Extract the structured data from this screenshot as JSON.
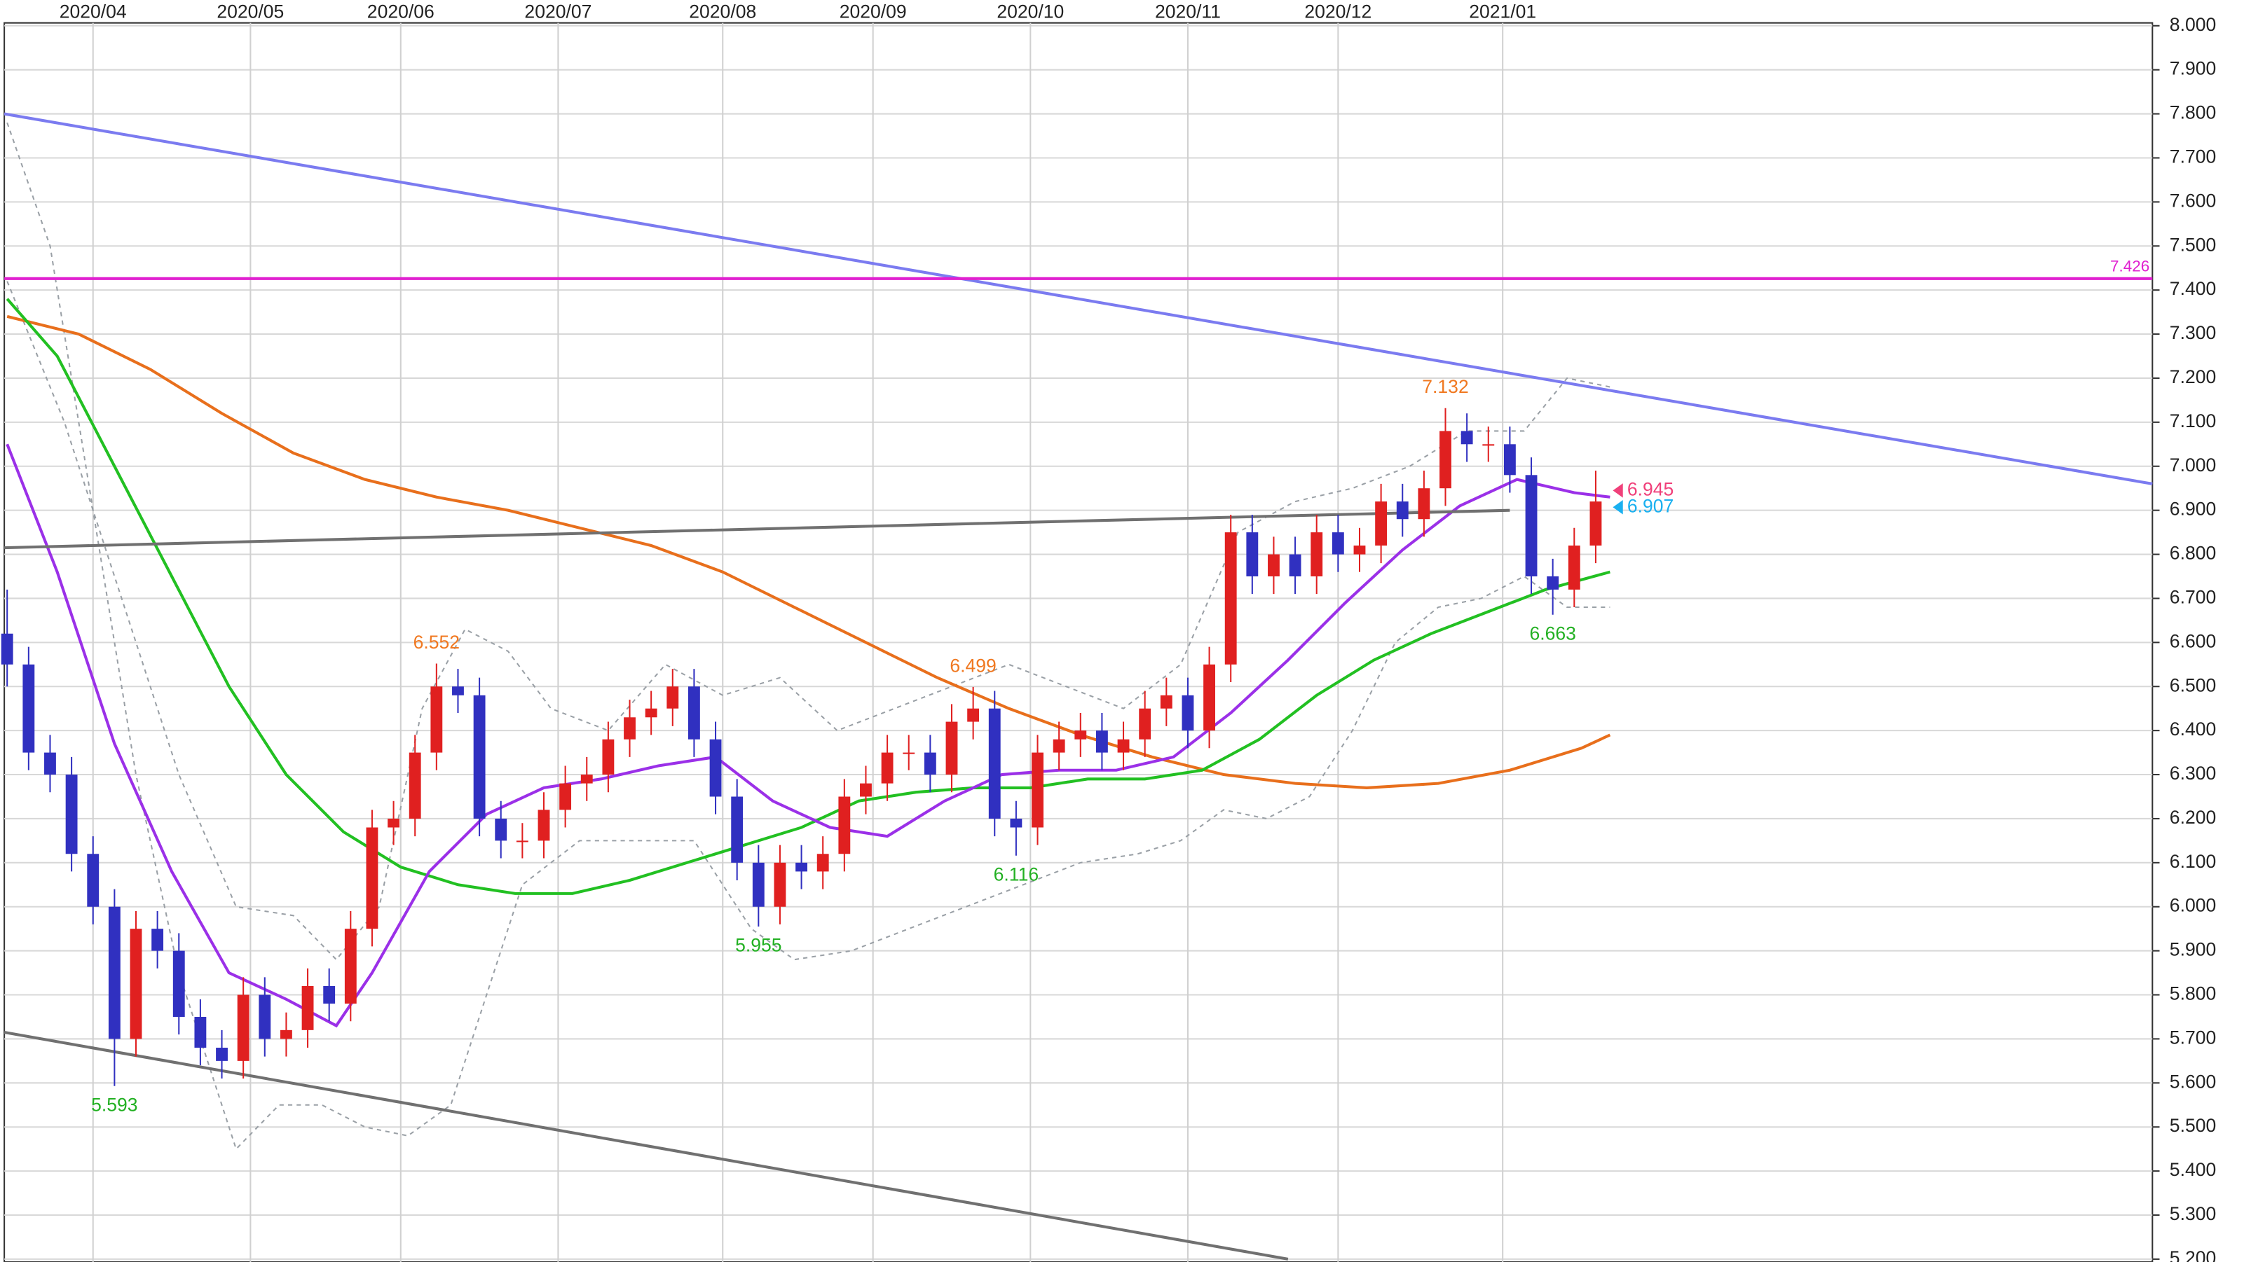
{
  "chart_data": {
    "type": "candlestick",
    "xlim": [
      -0.4,
      299.8
    ],
    "xticks": [
      {
        "value": 12,
        "label": "2020/04"
      },
      {
        "value": 34,
        "label": "2020/05"
      },
      {
        "value": 55,
        "label": "2020/06"
      },
      {
        "value": 77,
        "label": "2020/07"
      },
      {
        "value": 100,
        "label": "2020/08"
      },
      {
        "value": 121,
        "label": "2020/09"
      },
      {
        "value": 143,
        "label": "2020/10"
      },
      {
        "value": 165,
        "label": "2020/11"
      },
      {
        "value": 186,
        "label": "2020/12"
      },
      {
        "value": 209,
        "label": "2021/01"
      }
    ],
    "ylim": [
      5.2,
      8.0
    ],
    "yticks": [
      {
        "value": 5.2,
        "label": "5.200"
      },
      {
        "value": 5.3,
        "label": "5.300"
      },
      {
        "value": 5.4,
        "label": "5.400"
      },
      {
        "value": 5.5,
        "label": "5.500"
      },
      {
        "value": 5.6,
        "label": "5.600"
      },
      {
        "value": 5.7,
        "label": "5.700"
      },
      {
        "value": 5.8,
        "label": "5.800"
      },
      {
        "value": 5.9,
        "label": "5.900"
      },
      {
        "value": 6.0,
        "label": "6.000"
      },
      {
        "value": 6.1,
        "label": "6.100"
      },
      {
        "value": 6.2,
        "label": "6.200"
      },
      {
        "value": 6.3,
        "label": "6.300"
      },
      {
        "value": 6.4,
        "label": "6.400"
      },
      {
        "value": 6.5,
        "label": "6.500"
      },
      {
        "value": 6.6,
        "label": "6.600"
      },
      {
        "value": 6.7,
        "label": "6.700"
      },
      {
        "value": 6.8,
        "label": "6.800"
      },
      {
        "value": 6.9,
        "label": "6.900"
      },
      {
        "value": 7.0,
        "label": "7.000"
      },
      {
        "value": 7.1,
        "label": "7.100"
      },
      {
        "value": 7.2,
        "label": "7.200"
      },
      {
        "value": 7.3,
        "label": "7.300"
      },
      {
        "value": 7.4,
        "label": "7.400"
      },
      {
        "value": 7.5,
        "label": "7.500"
      },
      {
        "value": 7.6,
        "label": "7.600"
      },
      {
        "value": 7.7,
        "label": "7.700"
      },
      {
        "value": 7.8,
        "label": "7.800"
      },
      {
        "value": 7.9,
        "label": "7.900"
      },
      {
        "value": 8.0,
        "label": "8.000"
      }
    ],
    "grid": true,
    "up_color": "#e02020",
    "down_color": "#3030c0",
    "candles": {
      "x": [
        0,
        3,
        6,
        9,
        12,
        15,
        18,
        21,
        24,
        27,
        30,
        33,
        36,
        39,
        42,
        45,
        48,
        51,
        54,
        57,
        60,
        63,
        66,
        69,
        72,
        75,
        78,
        81,
        84,
        87,
        90,
        93,
        96,
        99,
        102,
        105,
        108,
        111,
        114,
        117,
        120,
        123,
        126,
        129,
        132,
        135,
        138,
        141,
        144,
        147,
        150,
        153,
        156,
        159,
        162,
        165,
        168,
        171,
        174,
        177,
        180,
        183,
        186,
        189,
        192,
        195,
        198,
        201,
        204,
        207,
        210,
        213,
        216,
        219,
        222
      ],
      "open": [
        6.62,
        6.55,
        6.35,
        6.3,
        6.12,
        6.0,
        5.7,
        5.95,
        5.9,
        5.75,
        5.68,
        5.65,
        5.8,
        5.7,
        5.72,
        5.82,
        5.78,
        5.95,
        6.18,
        6.2,
        6.35,
        6.5,
        6.48,
        6.2,
        6.15,
        6.15,
        6.22,
        6.28,
        6.3,
        6.38,
        6.43,
        6.45,
        6.5,
        6.38,
        6.25,
        6.1,
        6.0,
        6.1,
        6.08,
        6.12,
        6.25,
        6.28,
        6.35,
        6.35,
        6.3,
        6.42,
        6.45,
        6.2,
        6.18,
        6.35,
        6.38,
        6.4,
        6.35,
        6.38,
        6.45,
        6.48,
        6.4,
        6.55,
        6.85,
        6.75,
        6.8,
        6.75,
        6.85,
        6.8,
        6.82,
        6.92,
        6.88,
        6.95,
        7.08,
        7.05,
        7.05,
        6.98,
        6.75,
        6.72,
        6.82
      ],
      "high": [
        6.72,
        6.59,
        6.39,
        6.34,
        6.16,
        6.04,
        5.99,
        5.99,
        5.94,
        5.79,
        5.72,
        5.84,
        5.84,
        5.76,
        5.86,
        5.86,
        5.99,
        6.22,
        6.24,
        6.39,
        6.552,
        6.54,
        6.52,
        6.24,
        6.19,
        6.26,
        6.32,
        6.34,
        6.42,
        6.47,
        6.49,
        6.54,
        6.54,
        6.42,
        6.29,
        6.14,
        6.14,
        6.14,
        6.16,
        6.29,
        6.32,
        6.39,
        6.39,
        6.39,
        6.46,
        6.499,
        6.49,
        6.24,
        6.39,
        6.42,
        6.44,
        6.44,
        6.42,
        6.49,
        6.52,
        6.52,
        6.59,
        6.89,
        6.89,
        6.84,
        6.84,
        6.89,
        6.89,
        6.86,
        6.96,
        6.96,
        6.99,
        7.132,
        7.12,
        7.09,
        7.09,
        7.02,
        6.79,
        6.86,
        6.99
      ],
      "low": [
        6.5,
        6.31,
        6.26,
        6.08,
        5.96,
        5.593,
        5.66,
        5.86,
        5.71,
        5.64,
        5.61,
        5.61,
        5.66,
        5.66,
        5.68,
        5.74,
        5.74,
        5.91,
        6.14,
        6.16,
        6.31,
        6.44,
        6.16,
        6.11,
        6.11,
        6.11,
        6.18,
        6.24,
        6.26,
        6.34,
        6.39,
        6.41,
        6.34,
        6.21,
        6.06,
        5.955,
        5.96,
        6.04,
        6.04,
        6.08,
        6.21,
        6.24,
        6.31,
        6.26,
        6.26,
        6.38,
        6.16,
        6.116,
        6.14,
        6.31,
        6.34,
        6.31,
        6.31,
        6.34,
        6.41,
        6.36,
        6.36,
        6.51,
        6.71,
        6.71,
        6.71,
        6.71,
        6.76,
        6.76,
        6.78,
        6.84,
        6.84,
        6.91,
        7.01,
        7.01,
        6.94,
        6.71,
        6.663,
        6.68,
        6.78
      ],
      "close": [
        6.55,
        6.35,
        6.3,
        6.12,
        6.0,
        5.7,
        5.95,
        5.9,
        5.75,
        5.68,
        5.65,
        5.8,
        5.7,
        5.72,
        5.82,
        5.78,
        5.95,
        6.18,
        6.2,
        6.35,
        6.5,
        6.48,
        6.2,
        6.15,
        6.15,
        6.22,
        6.28,
        6.3,
        6.38,
        6.43,
        6.45,
        6.5,
        6.38,
        6.25,
        6.1,
        6.0,
        6.1,
        6.08,
        6.12,
        6.25,
        6.28,
        6.35,
        6.35,
        6.3,
        6.42,
        6.45,
        6.2,
        6.18,
        6.35,
        6.38,
        6.4,
        6.35,
        6.38,
        6.45,
        6.48,
        6.4,
        6.55,
        6.85,
        6.75,
        6.8,
        6.75,
        6.85,
        6.8,
        6.82,
        6.92,
        6.88,
        6.95,
        7.08,
        7.05,
        7.05,
        6.98,
        6.75,
        6.72,
        6.82,
        6.92
      ]
    },
    "lines": [
      {
        "color": "#9aa0a6",
        "style": "dashed",
        "x": [
          0,
          8,
          16,
          24,
          32,
          40,
          46,
          52,
          58,
          64,
          70,
          76,
          84,
          92,
          100,
          108,
          116,
          124,
          132,
          140,
          148,
          156,
          164,
          172,
          180,
          188,
          196,
          204,
          212,
          218,
          224
        ],
        "values": [
          7.42,
          7.1,
          6.7,
          6.3,
          6.0,
          5.98,
          5.88,
          6.0,
          6.45,
          6.63,
          6.58,
          6.45,
          6.4,
          6.55,
          6.48,
          6.52,
          6.4,
          6.45,
          6.5,
          6.55,
          6.5,
          6.45,
          6.55,
          6.85,
          6.92,
          6.95,
          7.0,
          7.08,
          7.08,
          7.2,
          7.18
        ]
      },
      {
        "color": "#9aa0a6",
        "style": "dashed",
        "x": [
          0,
          6,
          12,
          18,
          24,
          30,
          32,
          38,
          44,
          50,
          56,
          62,
          66,
          72,
          80,
          88,
          96,
          104,
          110,
          118,
          126,
          134,
          142,
          150,
          158,
          164,
          170,
          176,
          182,
          188,
          194,
          200,
          206,
          212,
          218,
          224
        ],
        "values": [
          7.78,
          7.5,
          6.9,
          6.3,
          5.85,
          5.55,
          5.45,
          5.55,
          5.55,
          5.5,
          5.48,
          5.55,
          5.75,
          6.05,
          6.15,
          6.15,
          6.15,
          5.95,
          5.88,
          5.9,
          5.95,
          6.0,
          6.05,
          6.1,
          6.12,
          6.15,
          6.22,
          6.2,
          6.25,
          6.4,
          6.6,
          6.68,
          6.7,
          6.75,
          6.68,
          6.68
        ]
      },
      {
        "color": "#e86f1c",
        "style": "solid",
        "x": [
          0,
          10,
          20,
          30,
          40,
          50,
          60,
          70,
          80,
          90,
          100,
          110,
          120,
          130,
          140,
          150,
          160,
          170,
          180,
          190,
          200,
          210,
          220,
          224
        ],
        "values": [
          7.34,
          7.3,
          7.22,
          7.12,
          7.03,
          6.97,
          6.93,
          6.9,
          6.86,
          6.82,
          6.76,
          6.68,
          6.6,
          6.52,
          6.45,
          6.39,
          6.34,
          6.3,
          6.28,
          6.27,
          6.28,
          6.31,
          6.36,
          6.39
        ]
      },
      {
        "color": "#22c022",
        "style": "solid",
        "x": [
          0,
          7,
          15,
          23,
          31,
          39,
          47,
          55,
          63,
          71,
          79,
          87,
          95,
          103,
          111,
          119,
          127,
          135,
          143,
          151,
          159,
          167,
          175,
          183,
          191,
          199,
          207,
          215,
          224
        ],
        "values": [
          7.38,
          7.25,
          7.0,
          6.75,
          6.5,
          6.3,
          6.17,
          6.09,
          6.05,
          6.03,
          6.03,
          6.06,
          6.1,
          6.14,
          6.18,
          6.24,
          6.26,
          6.27,
          6.27,
          6.29,
          6.29,
          6.31,
          6.38,
          6.48,
          6.56,
          6.62,
          6.67,
          6.72,
          6.76
        ]
      },
      {
        "color": "#9b30e8",
        "style": "solid",
        "x": [
          0,
          7,
          15,
          23,
          31,
          39,
          46,
          51,
          59,
          67,
          75,
          83,
          91,
          99,
          107,
          115,
          123,
          131,
          139,
          147,
          155,
          163,
          171,
          179,
          187,
          195,
          203,
          211,
          219,
          224
        ],
        "values": [
          7.05,
          6.76,
          6.37,
          6.08,
          5.85,
          5.79,
          5.73,
          5.85,
          6.08,
          6.21,
          6.27,
          6.29,
          6.32,
          6.34,
          6.24,
          6.18,
          6.16,
          6.24,
          6.3,
          6.31,
          6.31,
          6.34,
          6.44,
          6.56,
          6.69,
          6.81,
          6.91,
          6.97,
          6.94,
          6.93
        ]
      },
      {
        "color": "#7b7bf0",
        "style": "solid",
        "x": [
          -0.4,
          299.8
        ],
        "values": [
          7.8,
          6.96
        ]
      },
      {
        "color": "#707070",
        "style": "solid",
        "x": [
          -0.4,
          210
        ],
        "values": [
          6.815,
          6.9
        ]
      },
      {
        "color": "#707070",
        "style": "solid",
        "x": [
          -0.4,
          179
        ],
        "values": [
          5.715,
          5.2
        ]
      },
      {
        "color": "#e020d0",
        "style": "solid",
        "x": [
          -0.4,
          299.8
        ],
        "values": [
          7.426,
          7.426
        ]
      }
    ],
    "annotations": [
      {
        "value": 6.552,
        "x": 60,
        "color": "#f07820"
      },
      {
        "value": 6.499,
        "x": 135,
        "color": "#f07820"
      },
      {
        "value": 7.132,
        "x": 201,
        "color": "#f07820"
      },
      {
        "value": 5.593,
        "x": 15,
        "color": "#22b022"
      },
      {
        "value": 5.955,
        "x": 105,
        "color": "#22b022"
      },
      {
        "value": 6.116,
        "x": 141,
        "color": "#22b022"
      },
      {
        "value": 6.663,
        "x": 216,
        "color": "#22b022"
      }
    ],
    "markers": [
      {
        "value": 6.945,
        "color": "#f0407a"
      },
      {
        "value": 6.907,
        "color": "#1ab0f0"
      }
    ]
  }
}
